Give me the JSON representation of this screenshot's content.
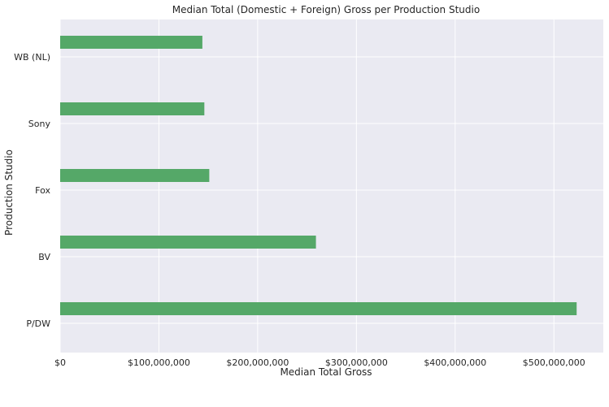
{
  "chart_data": {
    "type": "bar",
    "orientation": "horizontal",
    "title": "Median Total (Domestic + Foreign) Gross per Production Studio",
    "xlabel": "Median Total Gross",
    "ylabel": "Production Studio",
    "categories": [
      "WB (NL)",
      "Sony",
      "Fox",
      "BV",
      "P/DW"
    ],
    "values": [
      144000000,
      146000000,
      151000000,
      259000000,
      523000000
    ],
    "xlim": [
      0,
      550000000
    ],
    "xticks": [
      0,
      100000000,
      200000000,
      300000000,
      400000000,
      500000000
    ],
    "xtick_labels": [
      "$0",
      "$100,000,000",
      "$200,000,000",
      "$300,000,000",
      "$400,000,000",
      "$500,000,000"
    ],
    "grid": true,
    "bar_color": "#55a868",
    "background_color": "#eaeaf2",
    "grid_color": "#ffffff"
  }
}
